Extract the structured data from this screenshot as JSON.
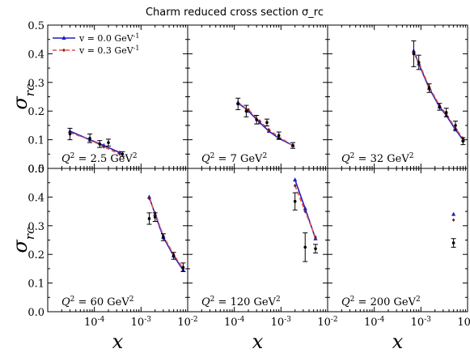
{
  "title": "Charm reduced cross section σ_rc",
  "chart_data": {
    "type": "line",
    "title": "Charm reduced cross section σ_rc",
    "ylabel": "σ_rc",
    "xlabel": "x",
    "xscale": "log",
    "xlim": [
      1e-05,
      0.01
    ],
    "ylim": [
      0.0,
      0.5
    ],
    "yticks": [
      "0.0",
      "0.1",
      "0.2",
      "0.3",
      "0.4",
      "0.5"
    ],
    "xticks": [
      "10^-4",
      "10^-3",
      "10^-2"
    ],
    "legend": {
      "placement": "top-left",
      "entries": [
        {
          "label": "v = 0.0 GeV^-1",
          "color": "#1f1fbf",
          "style": "solid",
          "marker": "triangle"
        },
        {
          "label": "v = 0.3 GeV^-1",
          "color": "#e8504f",
          "style": "dashed",
          "marker": "diamond"
        }
      ]
    },
    "panels": [
      {
        "label": "Q² = 2.5 GeV²",
        "series": [
          {
            "name": "v = 0.0 GeV^-1",
            "x": [
              3e-05,
              8e-05,
              0.00016,
              0.00035
            ],
            "y": [
              0.13,
              0.1,
              0.08,
              0.055
            ]
          },
          {
            "name": "v = 0.3 GeV^-1",
            "x": [
              3e-05,
              8e-05,
              0.00016,
              0.00035
            ],
            "y": [
              0.125,
              0.1,
              0.075,
              0.05
            ]
          }
        ],
        "measurements": [
          {
            "x": 3e-05,
            "y": 0.12,
            "err": 0.02
          },
          {
            "x": 8e-05,
            "y": 0.105,
            "err": 0.015
          },
          {
            "x": 0.00013,
            "y": 0.085,
            "err": 0.012
          },
          {
            "x": 0.0002,
            "y": 0.09,
            "err": 0.012
          },
          {
            "x": 0.0004,
            "y": 0.05,
            "err": 0.008
          }
        ]
      },
      {
        "label": "Q² = 7 GeV²",
        "series": [
          {
            "name": "v = 0.0 GeV^-1",
            "x": [
              0.00012,
              0.0002,
              0.00035,
              0.00055,
              0.0009,
              0.0018
            ],
            "y": [
              0.23,
              0.2,
              0.16,
              0.13,
              0.105,
              0.08
            ]
          },
          {
            "name": "v = 0.3 GeV^-1",
            "x": [
              0.00012,
              0.0002,
              0.00035,
              0.00055,
              0.0009,
              0.0018
            ],
            "y": [
              0.225,
              0.205,
              0.165,
              0.135,
              0.11,
              0.08
            ]
          }
        ],
        "measurements": [
          {
            "x": 0.00012,
            "y": 0.225,
            "err": 0.02
          },
          {
            "x": 0.00018,
            "y": 0.2,
            "err": 0.02
          },
          {
            "x": 0.0003,
            "y": 0.17,
            "err": 0.015
          },
          {
            "x": 0.0005,
            "y": 0.16,
            "err": 0.012
          },
          {
            "x": 0.0009,
            "y": 0.115,
            "err": 0.012
          },
          {
            "x": 0.0018,
            "y": 0.08,
            "err": 0.01
          }
        ]
      },
      {
        "label": "Q² = 32 GeV²",
        "series": [
          {
            "name": "v = 0.0 GeV^-1",
            "x": [
              0.0007,
              0.0009,
              0.0015,
              0.0025,
              0.0035,
              0.0055,
              0.008
            ],
            "y": [
              0.41,
              0.365,
              0.28,
              0.215,
              0.185,
              0.135,
              0.1
            ]
          },
          {
            "name": "v = 0.3 GeV^-1",
            "x": [
              0.0007,
              0.0009,
              0.0015,
              0.0025,
              0.0035,
              0.0055,
              0.008
            ],
            "y": [
              0.405,
              0.37,
              0.285,
              0.22,
              0.19,
              0.14,
              0.105
            ]
          }
        ],
        "measurements": [
          {
            "x": 0.0007,
            "y": 0.4,
            "err": 0.045
          },
          {
            "x": 0.0009,
            "y": 0.37,
            "err": 0.025
          },
          {
            "x": 0.0015,
            "y": 0.28,
            "err": 0.015
          },
          {
            "x": 0.0025,
            "y": 0.215,
            "err": 0.012
          },
          {
            "x": 0.0035,
            "y": 0.195,
            "err": 0.015
          },
          {
            "x": 0.0055,
            "y": 0.15,
            "err": 0.015
          },
          {
            "x": 0.008,
            "y": 0.095,
            "err": 0.012
          }
        ]
      },
      {
        "label": "Q² = 60 GeV²",
        "series": [
          {
            "name": "v = 0.0 GeV^-1",
            "x": [
              0.0015,
              0.002,
              0.003,
              0.005,
              0.008
            ],
            "y": [
              0.4,
              0.34,
              0.26,
              0.195,
              0.145
            ]
          },
          {
            "name": "v = 0.3 GeV^-1",
            "x": [
              0.0015,
              0.002,
              0.003,
              0.005,
              0.008
            ],
            "y": [
              0.395,
              0.345,
              0.265,
              0.2,
              0.15
            ]
          }
        ],
        "measurements": [
          {
            "x": 0.0015,
            "y": 0.325,
            "err": 0.02
          },
          {
            "x": 0.002,
            "y": 0.33,
            "err": 0.015
          },
          {
            "x": 0.003,
            "y": 0.26,
            "err": 0.012
          },
          {
            "x": 0.005,
            "y": 0.195,
            "err": 0.012
          },
          {
            "x": 0.008,
            "y": 0.155,
            "err": 0.015
          }
        ]
      },
      {
        "label": "Q² = 120 GeV²",
        "series": [
          {
            "name": "v = 0.0 GeV^-1",
            "x": [
              0.002,
              0.0033,
              0.0055
            ],
            "y": [
              0.46,
              0.36,
              0.255
            ]
          },
          {
            "name": "v = 0.3 GeV^-1",
            "x": [
              0.002,
              0.0033,
              0.0055
            ],
            "y": [
              0.44,
              0.35,
              0.26
            ]
          }
        ],
        "measurements": [
          {
            "x": 0.002,
            "y": 0.385,
            "err": 0.03
          },
          {
            "x": 0.0033,
            "y": 0.225,
            "err": 0.05
          },
          {
            "x": 0.0055,
            "y": 0.22,
            "err": 0.015
          }
        ]
      },
      {
        "label": "Q² = 200 GeV²",
        "series": [
          {
            "name": "v = 0.0 GeV^-1",
            "x": [
              0.005
            ],
            "y": [
              0.34
            ]
          },
          {
            "name": "v = 0.3 GeV^-1",
            "x": [
              0.005
            ],
            "y": [
              0.32
            ]
          }
        ],
        "measurements": [
          {
            "x": 0.005,
            "y": 0.24,
            "err": 0.015
          }
        ]
      }
    ]
  }
}
